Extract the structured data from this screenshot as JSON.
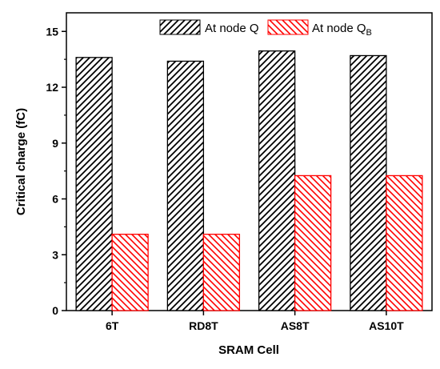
{
  "chart_data": {
    "type": "bar",
    "title": "",
    "xlabel": "SRAM Cell",
    "ylabel": "Critical charge (fC)",
    "categories": [
      "6T",
      "RD8T",
      "AS8T",
      "AS10T"
    ],
    "ylim": [
      0,
      16
    ],
    "yticks": [
      0,
      3,
      6,
      9,
      12,
      15
    ],
    "grid": false,
    "legend_position": "top-right",
    "series": [
      {
        "name": "At node Q",
        "name_main": "At node Q",
        "name_sub": "",
        "values": [
          13.6,
          13.4,
          13.95,
          13.7
        ],
        "color": "#000000",
        "fill": "#ffffff",
        "pattern": "black diagonal hatch"
      },
      {
        "name": "At node QB",
        "name_main": "At node Q",
        "name_sub": "B",
        "values": [
          4.1,
          4.1,
          7.25,
          7.25
        ],
        "color": "#ff0000",
        "fill": "#ffffff",
        "pattern": "red diagonal hatch"
      }
    ]
  }
}
